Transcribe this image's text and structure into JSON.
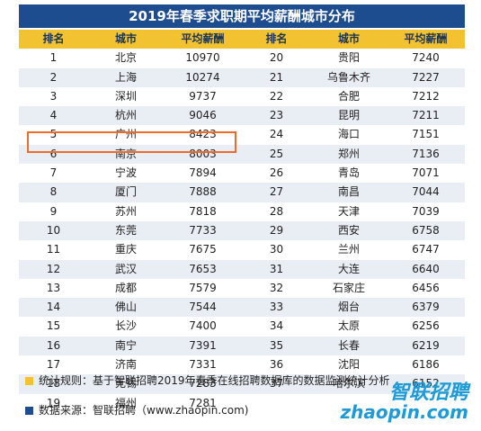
{
  "title": "2019年春季求职期平均薪酬城市分布",
  "headers": [
    "排名",
    "城市",
    "平均薪酬",
    "排名",
    "城市",
    "平均薪酬"
  ],
  "rows": [
    [
      [
        "1",
        "北京",
        "10970"
      ],
      [
        "20",
        "贵阳",
        "7240"
      ]
    ],
    [
      [
        "2",
        "上海",
        "10274"
      ],
      [
        "21",
        "乌鲁木齐",
        "7227"
      ]
    ],
    [
      [
        "3",
        "深圳",
        "9737"
      ],
      [
        "22",
        "合肥",
        "7212"
      ]
    ],
    [
      [
        "4",
        "杭州",
        "9046"
      ],
      [
        "23",
        "昆明",
        "7211"
      ]
    ],
    [
      [
        "5",
        "广州",
        "8423"
      ],
      [
        "24",
        "海口",
        "7151"
      ]
    ],
    [
      [
        "6",
        "南京",
        "8003"
      ],
      [
        "25",
        "郑州",
        "7136"
      ]
    ],
    [
      [
        "7",
        "宁波",
        "7894"
      ],
      [
        "26",
        "青岛",
        "7071"
      ]
    ],
    [
      [
        "8",
        "厦门",
        "7888"
      ],
      [
        "27",
        "南昌",
        "7044"
      ]
    ],
    [
      [
        "9",
        "苏州",
        "7818"
      ],
      [
        "28",
        "天津",
        "7039"
      ]
    ],
    [
      [
        "10",
        "东莞",
        "7733"
      ],
      [
        "29",
        "西安",
        "6758"
      ]
    ],
    [
      [
        "11",
        "重庆",
        "7675"
      ],
      [
        "30",
        "兰州",
        "6747"
      ]
    ],
    [
      [
        "12",
        "武汉",
        "7653"
      ],
      [
        "31",
        "大连",
        "6640"
      ]
    ],
    [
      [
        "13",
        "成都",
        "7579"
      ],
      [
        "32",
        "石家庄",
        "6456"
      ]
    ],
    [
      [
        "14",
        "佛山",
        "7544"
      ],
      [
        "33",
        "烟台",
        "6379"
      ]
    ],
    [
      [
        "15",
        "长沙",
        "7400"
      ],
      [
        "34",
        "太原",
        "6256"
      ]
    ],
    [
      [
        "16",
        "南宁",
        "7391"
      ],
      [
        "35",
        "长春",
        "6219"
      ]
    ],
    [
      [
        "17",
        "济南",
        "7331"
      ],
      [
        "36",
        "沈阳",
        "6186"
      ]
    ],
    [
      [
        "18",
        "无锡",
        "7283"
      ],
      [
        "37",
        "哈尔滨",
        "6152"
      ]
    ],
    [
      [
        "19",
        "福州",
        "7281"
      ],
      [
        "",
        "",
        ""
      ]
    ]
  ],
  "chart_data": {
    "type": "table",
    "title": "2019年春季求职期平均薪酬城市分布",
    "columns": [
      "排名",
      "城市",
      "平均薪酬"
    ],
    "records": [
      [
        1,
        "北京",
        10970
      ],
      [
        2,
        "上海",
        10274
      ],
      [
        3,
        "深圳",
        9737
      ],
      [
        4,
        "杭州",
        9046
      ],
      [
        5,
        "广州",
        8423
      ],
      [
        6,
        "南京",
        8003
      ],
      [
        7,
        "宁波",
        7894
      ],
      [
        8,
        "厦门",
        7888
      ],
      [
        9,
        "苏州",
        7818
      ],
      [
        10,
        "东莞",
        7733
      ],
      [
        11,
        "重庆",
        7675
      ],
      [
        12,
        "武汉",
        7653
      ],
      [
        13,
        "成都",
        7579
      ],
      [
        14,
        "佛山",
        7544
      ],
      [
        15,
        "长沙",
        7400
      ],
      [
        16,
        "南宁",
        7391
      ],
      [
        17,
        "济南",
        7331
      ],
      [
        18,
        "无锡",
        7283
      ],
      [
        19,
        "福州",
        7281
      ],
      [
        20,
        "贵阳",
        7240
      ],
      [
        21,
        "乌鲁木齐",
        7227
      ],
      [
        22,
        "合肥",
        7212
      ],
      [
        23,
        "昆明",
        7211
      ],
      [
        24,
        "海口",
        7151
      ],
      [
        25,
        "郑州",
        7136
      ],
      [
        26,
        "青岛",
        7071
      ],
      [
        27,
        "南昌",
        7044
      ],
      [
        28,
        "天津",
        7039
      ],
      [
        29,
        "西安",
        6758
      ],
      [
        30,
        "兰州",
        6747
      ],
      [
        31,
        "大连",
        6640
      ],
      [
        32,
        "石家庄",
        6456
      ],
      [
        33,
        "烟台",
        6379
      ],
      [
        34,
        "太原",
        6256
      ],
      [
        35,
        "长春",
        6219
      ],
      [
        36,
        "沈阳",
        6186
      ],
      [
        37,
        "哈尔滨",
        6152
      ]
    ],
    "highlighted_rank": 6
  },
  "notes": {
    "rule": "统计规则：基于智联招聘2019年春季在线招聘数据库的数据监测统计分析",
    "source": "数据来源：智联招聘（www.zhaopin.com)"
  },
  "colors": {
    "title_bg": "#1e4d8f",
    "header_bg": "#f2c230",
    "row_alt_bg": "#e9edf4",
    "highlight_border": "#f06a2a",
    "bullet_yellow": "#f2c230",
    "bullet_blue": "#1e4d8f",
    "logo": "#1e9ad6"
  },
  "logo": {
    "cn": "智联招聘",
    "en": "zhaopin.com"
  }
}
